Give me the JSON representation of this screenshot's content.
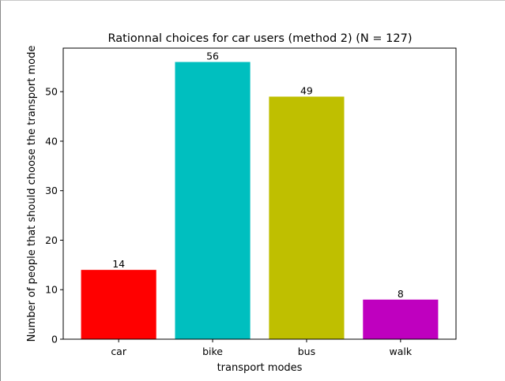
{
  "chart_data": {
    "type": "bar",
    "title": "Rationnal choices for car users (method 2) (N = 127)",
    "xlabel": "transport modes",
    "ylabel": "Number of people that should choose the transport mode",
    "categories": [
      "car",
      "bike",
      "bus",
      "walk"
    ],
    "values": [
      14,
      56,
      49,
      8
    ],
    "value_labels": [
      "14",
      "56",
      "49",
      "8"
    ],
    "colors": [
      "#ff0000",
      "#00bfbf",
      "#bfbf00",
      "#bf00bf"
    ],
    "ylim": [
      0,
      58.8
    ],
    "yticks": [
      0,
      10,
      20,
      30,
      40,
      50
    ],
    "ytick_labels": [
      "0",
      "10",
      "20",
      "30",
      "40",
      "50"
    ],
    "grid": false
  }
}
